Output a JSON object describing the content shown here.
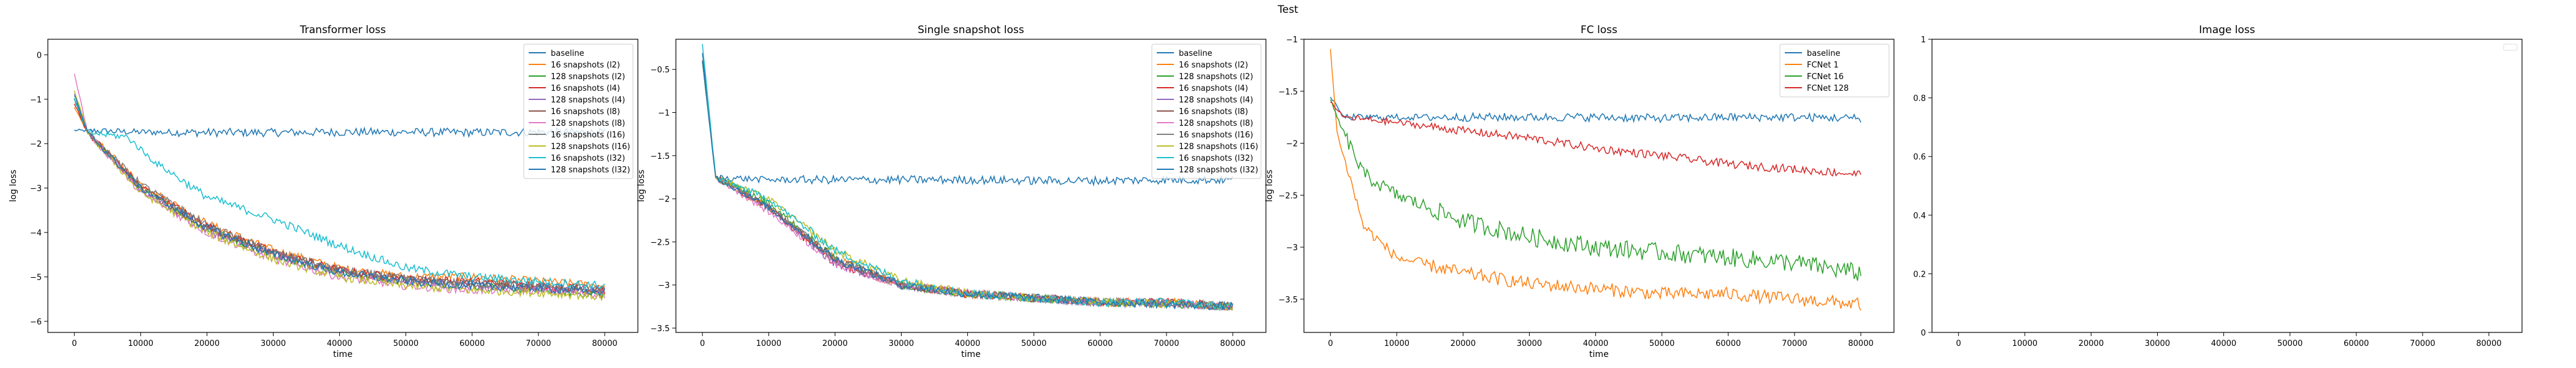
{
  "figure": {
    "suptitle": "Test"
  },
  "chart_data": [
    {
      "type": "line",
      "title": "Transformer loss",
      "xlabel": "time",
      "ylabel": "log loss",
      "xlim": [
        -4000,
        85000
      ],
      "ylim": [
        -6.25,
        0.35
      ],
      "xticks": [
        0,
        10000,
        20000,
        30000,
        40000,
        50000,
        60000,
        70000,
        80000
      ],
      "yticks": [
        0,
        -1,
        -2,
        -3,
        -4,
        -5,
        -6
      ],
      "legend_position": "top-right",
      "series": [
        {
          "name": "baseline",
          "color": "#1f77b4",
          "x": [
            0,
            10000,
            20000,
            30000,
            40000,
            50000,
            60000,
            70000,
            80000
          ],
          "y": [
            -1.7,
            -1.74,
            -1.75,
            -1.75,
            -1.74,
            -1.74,
            -1.75,
            -1.74,
            -1.75
          ]
        },
        {
          "name": "16 snapshots (l2)",
          "color": "#ff7f0e",
          "x": [
            0,
            2000,
            10000,
            20000,
            30000,
            40000,
            50000,
            60000,
            70000,
            80000
          ],
          "y": [
            -1.2,
            -1.75,
            -2.9,
            -3.8,
            -4.4,
            -4.8,
            -5.0,
            -5.0,
            -5.1,
            -5.2
          ]
        },
        {
          "name": "128 snapshots (l2)",
          "color": "#2ca02c",
          "x": [
            0,
            2000,
            10000,
            20000,
            30000,
            40000,
            50000,
            60000,
            70000,
            80000
          ],
          "y": [
            -1.0,
            -1.75,
            -3.0,
            -3.9,
            -4.5,
            -4.9,
            -5.1,
            -5.2,
            -5.3,
            -5.4
          ]
        },
        {
          "name": "16 snapshots (l4)",
          "color": "#d62728",
          "x": [
            0,
            2000,
            10000,
            20000,
            30000,
            40000,
            50000,
            60000,
            70000,
            80000
          ],
          "y": [
            -1.1,
            -1.75,
            -2.95,
            -3.85,
            -4.45,
            -4.85,
            -5.05,
            -5.1,
            -5.2,
            -5.3
          ]
        },
        {
          "name": "128 snapshots (l4)",
          "color": "#9467bd",
          "x": [
            0,
            2000,
            10000,
            20000,
            30000,
            40000,
            50000,
            60000,
            70000,
            80000
          ],
          "y": [
            -0.9,
            -1.75,
            -3.05,
            -3.95,
            -4.5,
            -4.9,
            -5.1,
            -5.2,
            -5.25,
            -5.3
          ]
        },
        {
          "name": "16 snapshots (l8)",
          "color": "#8c564b",
          "x": [
            0,
            2000,
            10000,
            20000,
            30000,
            40000,
            50000,
            60000,
            70000,
            80000
          ],
          "y": [
            -1.0,
            -1.75,
            -3.0,
            -3.9,
            -4.45,
            -4.85,
            -5.05,
            -5.15,
            -5.2,
            -5.3
          ]
        },
        {
          "name": "128 snapshots (l8)",
          "color": "#e377c2",
          "x": [
            0,
            2000,
            10000,
            20000,
            30000,
            40000,
            50000,
            60000,
            70000,
            80000
          ],
          "y": [
            -0.4,
            -1.75,
            -3.1,
            -4.0,
            -4.6,
            -5.0,
            -5.2,
            -5.3,
            -5.3,
            -5.4
          ]
        },
        {
          "name": "16 snapshots (l16)",
          "color": "#7f7f7f",
          "x": [
            0,
            2000,
            10000,
            20000,
            30000,
            40000,
            50000,
            60000,
            70000,
            80000
          ],
          "y": [
            -1.0,
            -1.75,
            -2.9,
            -3.85,
            -4.45,
            -4.85,
            -5.05,
            -5.15,
            -5.2,
            -5.3
          ]
        },
        {
          "name": "128 snapshots (l16)",
          "color": "#bcbd22",
          "x": [
            0,
            2000,
            10000,
            20000,
            30000,
            40000,
            50000,
            60000,
            70000,
            80000
          ],
          "y": [
            -0.8,
            -1.75,
            -3.1,
            -4.0,
            -4.6,
            -5.0,
            -5.2,
            -5.3,
            -5.35,
            -5.45
          ]
        },
        {
          "name": "16 snapshots (l32)",
          "color": "#17becf",
          "x": [
            0,
            2000,
            8000,
            12000,
            20000,
            30000,
            40000,
            50000,
            60000,
            70000,
            80000
          ],
          "y": [
            -1.0,
            -1.75,
            -1.85,
            -2.4,
            -3.2,
            -3.7,
            -4.3,
            -4.8,
            -5.0,
            -5.1,
            -5.2
          ]
        },
        {
          "name": "128 snapshots (l32)",
          "color": "#1f77b4",
          "x": [
            0,
            2000,
            10000,
            20000,
            30000,
            40000,
            50000,
            60000,
            70000,
            80000
          ],
          "y": [
            -0.9,
            -1.75,
            -3.0,
            -3.9,
            -4.5,
            -4.9,
            -5.1,
            -5.2,
            -5.25,
            -5.35
          ]
        }
      ]
    },
    {
      "type": "line",
      "title": "Single snapshot loss",
      "xlabel": "time",
      "ylabel": "log loss",
      "xlim": [
        -4000,
        85000
      ],
      "ylim": [
        -3.55,
        -0.15
      ],
      "xticks": [
        0,
        10000,
        20000,
        30000,
        40000,
        50000,
        60000,
        70000,
        80000
      ],
      "yticks": [
        -0.5,
        -1.0,
        -1.5,
        -2.0,
        -2.5,
        -3.0,
        -3.5
      ],
      "legend_position": "top-right",
      "series": [
        {
          "name": "baseline",
          "color": "#1f77b4",
          "x": [
            0,
            2000,
            10000,
            20000,
            30000,
            40000,
            50000,
            60000,
            70000,
            80000
          ],
          "y": [
            -0.3,
            -1.75,
            -1.78,
            -1.78,
            -1.78,
            -1.78,
            -1.79,
            -1.79,
            -1.78,
            -1.78
          ]
        },
        {
          "name": "16 snapshots (l2)",
          "color": "#ff7f0e",
          "x": [
            0,
            2000,
            10000,
            20000,
            30000,
            40000,
            50000,
            60000,
            70000,
            80000
          ],
          "y": [
            -0.4,
            -1.75,
            -2.1,
            -2.7,
            -3.0,
            -3.1,
            -3.15,
            -3.2,
            -3.2,
            -3.25
          ]
        },
        {
          "name": "128 snapshots (l2)",
          "color": "#2ca02c",
          "x": [
            0,
            2000,
            10000,
            20000,
            30000,
            40000,
            50000,
            60000,
            70000,
            80000
          ],
          "y": [
            -0.4,
            -1.75,
            -2.05,
            -2.7,
            -3.0,
            -3.1,
            -3.15,
            -3.2,
            -3.22,
            -3.25
          ]
        },
        {
          "name": "16 snapshots (l4)",
          "color": "#d62728",
          "x": [
            0,
            2000,
            10000,
            20000,
            30000,
            40000,
            50000,
            60000,
            70000,
            80000
          ],
          "y": [
            -0.4,
            -1.75,
            -2.1,
            -2.75,
            -3.0,
            -3.1,
            -3.15,
            -3.2,
            -3.2,
            -3.25
          ]
        },
        {
          "name": "128 snapshots (l4)",
          "color": "#9467bd",
          "x": [
            0,
            2000,
            10000,
            20000,
            30000,
            40000,
            50000,
            60000,
            70000,
            80000
          ],
          "y": [
            -0.4,
            -1.75,
            -2.1,
            -2.75,
            -3.0,
            -3.1,
            -3.15,
            -3.2,
            -3.22,
            -3.25
          ]
        },
        {
          "name": "16 snapshots (l8)",
          "color": "#8c564b",
          "x": [
            0,
            2000,
            10000,
            20000,
            30000,
            40000,
            50000,
            60000,
            70000,
            80000
          ],
          "y": [
            -0.4,
            -1.75,
            -2.1,
            -2.7,
            -3.0,
            -3.1,
            -3.15,
            -3.2,
            -3.2,
            -3.25
          ]
        },
        {
          "name": "128 snapshots (l8)",
          "color": "#e377c2",
          "x": [
            0,
            2000,
            10000,
            20000,
            30000,
            40000,
            50000,
            60000,
            70000,
            80000
          ],
          "y": [
            -0.4,
            -1.75,
            -2.15,
            -2.75,
            -3.0,
            -3.1,
            -3.15,
            -3.2,
            -3.22,
            -3.25
          ]
        },
        {
          "name": "16 snapshots (l16)",
          "color": "#7f7f7f",
          "x": [
            0,
            2000,
            10000,
            20000,
            30000,
            40000,
            50000,
            60000,
            70000,
            80000
          ],
          "y": [
            -0.4,
            -1.75,
            -2.1,
            -2.7,
            -3.0,
            -3.1,
            -3.15,
            -3.2,
            -3.2,
            -3.25
          ]
        },
        {
          "name": "128 snapshots (l16)",
          "color": "#bcbd22",
          "x": [
            0,
            2000,
            10000,
            20000,
            30000,
            40000,
            50000,
            60000,
            70000,
            80000
          ],
          "y": [
            -0.4,
            -1.75,
            -2.0,
            -2.6,
            -2.95,
            -3.1,
            -3.15,
            -3.2,
            -3.22,
            -3.25
          ]
        },
        {
          "name": "16 snapshots (l32)",
          "color": "#17becf",
          "x": [
            0,
            2000,
            10000,
            20000,
            30000,
            40000,
            50000,
            60000,
            70000,
            80000
          ],
          "y": [
            -0.2,
            -1.75,
            -2.0,
            -2.6,
            -2.95,
            -3.1,
            -3.15,
            -3.2,
            -3.2,
            -3.25
          ]
        },
        {
          "name": "128 snapshots (l32)",
          "color": "#1f77b4",
          "x": [
            0,
            2000,
            10000,
            20000,
            30000,
            40000,
            50000,
            60000,
            70000,
            80000
          ],
          "y": [
            -0.4,
            -1.75,
            -2.1,
            -2.7,
            -3.0,
            -3.1,
            -3.15,
            -3.2,
            -3.22,
            -3.25
          ]
        }
      ]
    },
    {
      "type": "line",
      "title": "FC loss",
      "xlabel": "time",
      "ylabel": "log loss",
      "xlim": [
        -4000,
        85000
      ],
      "ylim": [
        -3.82,
        -1.0
      ],
      "xticks": [
        0,
        10000,
        20000,
        30000,
        40000,
        50000,
        60000,
        70000,
        80000
      ],
      "yticks": [
        -1.0,
        -1.5,
        -2.0,
        -2.5,
        -3.0,
        -3.5
      ],
      "legend_position": "top-right",
      "series": [
        {
          "name": "baseline",
          "color": "#1f77b4",
          "x": [
            0,
            2000,
            10000,
            20000,
            30000,
            40000,
            50000,
            60000,
            70000,
            80000
          ],
          "y": [
            -1.55,
            -1.75,
            -1.75,
            -1.75,
            -1.75,
            -1.75,
            -1.76,
            -1.75,
            -1.75,
            -1.76
          ]
        },
        {
          "name": "FCNet 1",
          "color": "#ff7f0e",
          "x": [
            0,
            1000,
            5000,
            10000,
            20000,
            30000,
            40000,
            50000,
            60000,
            70000,
            80000
          ],
          "y": [
            -1.1,
            -1.9,
            -2.8,
            -3.1,
            -3.25,
            -3.35,
            -3.4,
            -3.45,
            -3.45,
            -3.5,
            -3.55
          ]
        },
        {
          "name": "FCNet 16",
          "color": "#2ca02c",
          "x": [
            0,
            2000,
            5000,
            10000,
            20000,
            30000,
            40000,
            50000,
            60000,
            70000,
            80000
          ],
          "y": [
            -1.6,
            -1.9,
            -2.3,
            -2.5,
            -2.75,
            -2.9,
            -3.0,
            -3.05,
            -3.1,
            -3.15,
            -3.25
          ]
        },
        {
          "name": "FCNet 128",
          "color": "#d62728",
          "x": [
            0,
            2000,
            10000,
            20000,
            30000,
            40000,
            50000,
            60000,
            70000,
            80000
          ],
          "y": [
            -1.6,
            -1.75,
            -1.8,
            -1.88,
            -1.95,
            -2.05,
            -2.12,
            -2.2,
            -2.25,
            -2.3
          ]
        }
      ]
    },
    {
      "type": "line",
      "title": "Image loss",
      "xlabel": "",
      "ylabel": "",
      "xlim": [
        -4000,
        85000
      ],
      "ylim": [
        0,
        1
      ],
      "xticks": [
        0,
        10000,
        20000,
        30000,
        40000,
        50000,
        60000,
        70000,
        80000
      ],
      "yticks": [
        0.0,
        0.2,
        0.4,
        0.6,
        0.8,
        1.0
      ],
      "legend_position": "top-right",
      "series": []
    }
  ]
}
